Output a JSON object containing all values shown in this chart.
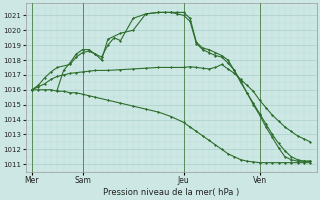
{
  "background_color": "#cde8e4",
  "grid_major_color": "#aacfca",
  "grid_minor_color": "#bbddd9",
  "line_color": "#2d6e2d",
  "ylabel_ticks": [
    1011,
    1012,
    1013,
    1014,
    1015,
    1016,
    1017,
    1018,
    1019,
    1020,
    1021
  ],
  "ylim": [
    1010.5,
    1021.8
  ],
  "xlabel": "Pression niveau de la mer( hPa )",
  "day_labels": [
    "Mer",
    "Sam",
    "Jeu",
    "Ven"
  ],
  "day_positions": [
    0,
    4,
    12,
    18
  ],
  "vline_positions": [
    0,
    4,
    12,
    18
  ],
  "xlim": [
    -0.5,
    22.5
  ],
  "series1_x": [
    0,
    0.5,
    1,
    1.5,
    2,
    2.5,
    3,
    3.5,
    4,
    4.5,
    5,
    6,
    7,
    8,
    9,
    10,
    11,
    12,
    12.5,
    13,
    13.5,
    14,
    14.5,
    15,
    15.5,
    16,
    16.5,
    17,
    17.5,
    18,
    18.5,
    19,
    19.5,
    20,
    20.5,
    21,
    21.5,
    22
  ],
  "series1_y": [
    1016.0,
    1016.2,
    1016.4,
    1016.7,
    1016.9,
    1017.0,
    1017.1,
    1017.15,
    1017.2,
    1017.25,
    1017.3,
    1017.3,
    1017.35,
    1017.4,
    1017.45,
    1017.5,
    1017.5,
    1017.5,
    1017.55,
    1017.5,
    1017.45,
    1017.4,
    1017.5,
    1017.7,
    1017.4,
    1017.1,
    1016.7,
    1016.3,
    1015.9,
    1015.3,
    1014.8,
    1014.3,
    1013.9,
    1013.5,
    1013.2,
    1012.9,
    1012.7,
    1012.5
  ],
  "series2_x": [
    0,
    0.5,
    1,
    1.5,
    2,
    3,
    3.5,
    4,
    4.5,
    5,
    5.5,
    6,
    6.5,
    7,
    8,
    9,
    10,
    10.5,
    11,
    11.5,
    12,
    12.5,
    13,
    13.5,
    14,
    14.5,
    15,
    15.5,
    16,
    16.5,
    17,
    17.5,
    18,
    18.5,
    19,
    19.5,
    20,
    20.5,
    21,
    21.5,
    22
  ],
  "series2_y": [
    1016.0,
    1016.3,
    1016.8,
    1017.2,
    1017.5,
    1017.7,
    1018.2,
    1018.5,
    1018.6,
    1018.4,
    1018.2,
    1019.0,
    1019.5,
    1019.3,
    1020.8,
    1021.1,
    1021.2,
    1021.2,
    1021.2,
    1021.1,
    1021.0,
    1020.6,
    1019.1,
    1018.7,
    1018.5,
    1018.3,
    1018.2,
    1017.8,
    1017.3,
    1016.5,
    1015.8,
    1015.0,
    1014.3,
    1013.5,
    1012.8,
    1012.1,
    1011.5,
    1011.3,
    1011.2,
    1011.2,
    1011.2
  ],
  "series3_x": [
    2,
    2.5,
    3,
    3.5,
    4,
    4.5,
    5,
    5.5,
    6,
    7,
    8,
    9,
    10,
    10.5,
    11,
    11.5,
    12,
    12.5,
    13,
    13.5,
    14,
    14.5,
    15,
    15.5,
    16,
    16.5,
    17,
    17.5,
    18,
    18.5,
    19,
    19.5,
    20,
    20.5,
    21,
    21.5,
    22
  ],
  "series3_y": [
    1016.0,
    1017.3,
    1017.8,
    1018.4,
    1018.7,
    1018.7,
    1018.4,
    1018.0,
    1019.4,
    1019.8,
    1020.0,
    1021.1,
    1021.2,
    1021.2,
    1021.2,
    1021.2,
    1021.2,
    1020.8,
    1019.2,
    1018.8,
    1018.7,
    1018.5,
    1018.3,
    1018.0,
    1017.3,
    1016.6,
    1015.8,
    1015.1,
    1014.4,
    1013.7,
    1013.0,
    1012.4,
    1011.9,
    1011.5,
    1011.3,
    1011.2,
    1011.2
  ],
  "series4_x": [
    0,
    0.5,
    1,
    1.5,
    2,
    2.5,
    3,
    3.5,
    4,
    4.5,
    5,
    6,
    7,
    8,
    9,
    10,
    11,
    12,
    12.5,
    13,
    13.5,
    14,
    14.5,
    15,
    15.5,
    16,
    16.5,
    17,
    17.5,
    18,
    18.5,
    19,
    19.5,
    20,
    20.5,
    21,
    21.5,
    22
  ],
  "series4_y": [
    1016.0,
    1016.0,
    1016.0,
    1016.0,
    1015.9,
    1015.9,
    1015.8,
    1015.8,
    1015.7,
    1015.6,
    1015.5,
    1015.3,
    1015.1,
    1014.9,
    1014.7,
    1014.5,
    1014.2,
    1013.8,
    1013.5,
    1013.2,
    1012.9,
    1012.6,
    1012.3,
    1012.0,
    1011.7,
    1011.5,
    1011.3,
    1011.2,
    1011.15,
    1011.1,
    1011.1,
    1011.1,
    1011.1,
    1011.1,
    1011.1,
    1011.1,
    1011.1,
    1011.1
  ]
}
